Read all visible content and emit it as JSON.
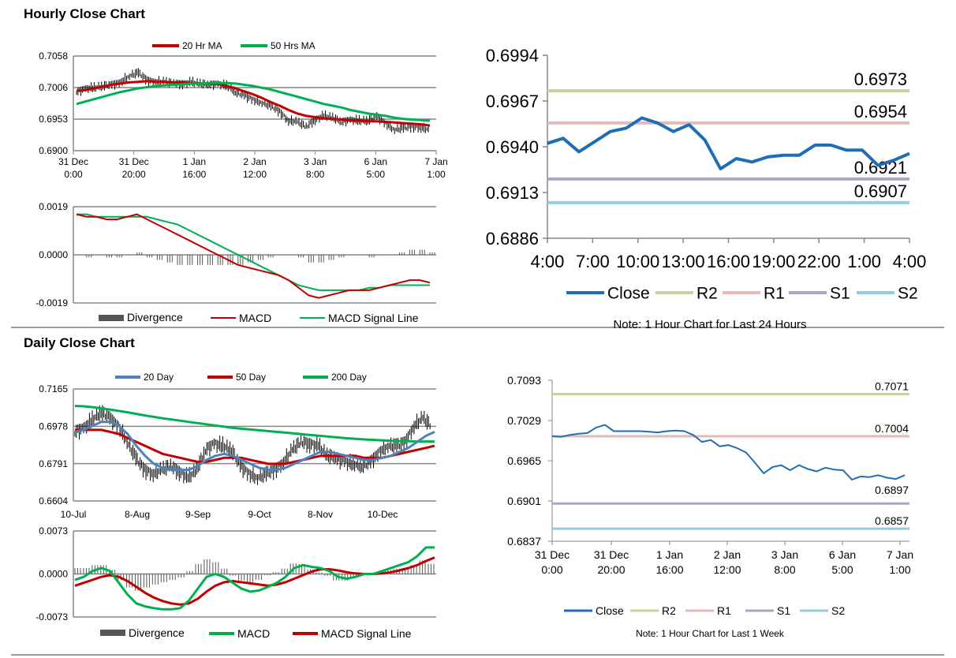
{
  "hourly_title": "Hourly Close Chart",
  "daily_title": "Daily Close Chart",
  "chart_data": [
    {
      "id": "hourly_price",
      "type": "line",
      "legend": [
        "20 Hr MA",
        "50 Hrs MA"
      ],
      "colors": {
        "price": "#000000",
        "ma20": "#c00000",
        "ma50": "#00b050"
      },
      "yticks": [
        "0.7058",
        "0.7006",
        "0.6953",
        "0.6900"
      ],
      "ylim": [
        0.69,
        0.7058
      ],
      "xticks": [
        [
          "31 Dec",
          "0:00"
        ],
        [
          "31 Dec",
          "20:00"
        ],
        [
          "1 Jan",
          "16:00"
        ],
        [
          "2 Jan",
          "12:00"
        ],
        [
          "3 Jan",
          "8:00"
        ],
        [
          "6 Jan",
          "5:00"
        ],
        [
          "7 Jan",
          "1:00"
        ]
      ],
      "price": [
        0.6998,
        0.7004,
        0.7005,
        0.7008,
        0.701,
        0.7015,
        0.7025,
        0.703,
        0.7018,
        0.7015,
        0.7015,
        0.7012,
        0.7012,
        0.7014,
        0.7012,
        0.701,
        0.7012,
        0.7008,
        0.6998,
        0.6992,
        0.6985,
        0.698,
        0.6975,
        0.6965,
        0.695,
        0.6948,
        0.694,
        0.6952,
        0.6958,
        0.6955,
        0.6948,
        0.6952,
        0.695,
        0.695,
        0.6958,
        0.6945,
        0.6935,
        0.6938,
        0.694,
        0.6938,
        0.6935
      ],
      "ma20": [
        0.7,
        0.7001,
        0.7004,
        0.7007,
        0.701,
        0.7012,
        0.7014,
        0.7015,
        0.7016,
        0.7015,
        0.7015,
        0.7014,
        0.7014,
        0.7013,
        0.7012,
        0.7012,
        0.7011,
        0.7008,
        0.7004,
        0.6999,
        0.6994,
        0.6988,
        0.6981,
        0.6975,
        0.6968,
        0.6962,
        0.6958,
        0.6956,
        0.6954,
        0.6953,
        0.6952,
        0.695,
        0.695,
        0.6949,
        0.6949,
        0.6948,
        0.6947,
        0.6946,
        0.6945,
        0.6944,
        0.6942
      ],
      "ma50": [
        0.6978,
        0.6982,
        0.6986,
        0.699,
        0.6994,
        0.6998,
        0.7001,
        0.7004,
        0.7006,
        0.7008,
        0.7009,
        0.701,
        0.7011,
        0.7012,
        0.7012,
        0.7013,
        0.7013,
        0.7013,
        0.7012,
        0.701,
        0.7008,
        0.7005,
        0.7002,
        0.6998,
        0.6994,
        0.699,
        0.6986,
        0.6982,
        0.6978,
        0.6975,
        0.6972,
        0.6968,
        0.6965,
        0.6962,
        0.696,
        0.6958,
        0.6955,
        0.6953,
        0.6952,
        0.6951,
        0.695
      ]
    },
    {
      "id": "hourly_macd",
      "type": "line",
      "legend": [
        "Divergence",
        "MACD",
        "MACD Signal Line"
      ],
      "colors": {
        "divergence": "#555555",
        "macd": "#c00000",
        "signal": "#00b050"
      },
      "yticks": [
        "0.0019",
        "0.0000",
        "-0.0019"
      ],
      "ylim": [
        -0.0019,
        0.0019
      ],
      "macd": [
        0.0016,
        0.0015,
        0.0015,
        0.0014,
        0.0014,
        0.0015,
        0.0016,
        0.0014,
        0.0012,
        0.001,
        0.0008,
        0.0006,
        0.0004,
        0.0002,
        0.0,
        -0.0002,
        -0.0004,
        -0.0005,
        -0.0006,
        -0.0007,
        -0.0008,
        -0.001,
        -0.0013,
        -0.0016,
        -0.0017,
        -0.0016,
        -0.0015,
        -0.0014,
        -0.0014,
        -0.0014,
        -0.0013,
        -0.0012,
        -0.0011,
        -0.001,
        -0.001,
        -0.0011
      ],
      "signal": [
        0.0016,
        0.0016,
        0.0015,
        0.0015,
        0.0015,
        0.0015,
        0.0015,
        0.0015,
        0.0014,
        0.0013,
        0.0012,
        0.001,
        0.0008,
        0.0006,
        0.0004,
        0.0002,
        0.0,
        -0.0002,
        -0.0004,
        -0.0006,
        -0.0008,
        -0.001,
        -0.0012,
        -0.0013,
        -0.0014,
        -0.0014,
        -0.0014,
        -0.0014,
        -0.0014,
        -0.0013,
        -0.0013,
        -0.0012,
        -0.0012,
        -0.0012,
        -0.0012,
        -0.0012
      ],
      "divergence": [
        0.0,
        -0.0001,
        0.0,
        -0.0001,
        -0.0001,
        0.0,
        0.0001,
        -0.0001,
        -0.0002,
        -0.0003,
        -0.0004,
        -0.0004,
        -0.0004,
        -0.0004,
        -0.0004,
        -0.0004,
        -0.0004,
        -0.0003,
        -0.0002,
        -0.0001,
        0.0,
        0.0,
        -0.0001,
        -0.0003,
        -0.0003,
        -0.0002,
        -0.0001,
        0.0,
        0.0,
        -0.0001,
        0.0,
        0.0,
        0.0001,
        0.0002,
        0.0002,
        0.0001
      ]
    },
    {
      "id": "hourly_24h",
      "type": "line",
      "yticks": [
        "0.6994",
        "0.6967",
        "0.6940",
        "0.6913",
        "0.6886"
      ],
      "ylim": [
        0.6886,
        0.6994
      ],
      "xticks": [
        "4:00",
        "7:00",
        "10:00",
        "13:00",
        "16:00",
        "19:00",
        "22:00",
        "1:00",
        "4:00"
      ],
      "close": [
        0.6942,
        0.6945,
        0.6937,
        0.6943,
        0.6949,
        0.6951,
        0.6957,
        0.6954,
        0.6949,
        0.6953,
        0.6944,
        0.6927,
        0.6933,
        0.6931,
        0.6934,
        0.6935,
        0.6935,
        0.6941,
        0.6941,
        0.6938,
        0.6938,
        0.6929,
        0.6932,
        0.6936
      ],
      "levels": [
        {
          "name": "R2",
          "value": 0.6973,
          "label": "0.6973",
          "color": "#c3d69b"
        },
        {
          "name": "R1",
          "value": 0.6954,
          "label": "0.6954",
          "color": "#e6b9b8"
        },
        {
          "name": "S1",
          "value": 0.6921,
          "label": "0.6921",
          "color": "#b3a2c7"
        },
        {
          "name": "S2",
          "value": 0.6907,
          "label": "0.6907",
          "color": "#93cddd"
        }
      ],
      "close_color": "#1f6eb5",
      "legend": [
        "Close",
        "R2",
        "R1",
        "S1",
        "S2"
      ],
      "note": "Note: 1 Hour Chart for Last 24 Hours"
    },
    {
      "id": "daily_price",
      "type": "line",
      "legend": [
        "20 Day",
        "50 Day",
        "200 Day"
      ],
      "colors": {
        "price": "#000000",
        "ma20": "#4f81bd",
        "ma50": "#c00000",
        "ma200": "#00b050"
      },
      "yticks": [
        "0.7165",
        "0.6978",
        "0.6791",
        "0.6604"
      ],
      "ylim": [
        0.6604,
        0.7165
      ],
      "xticks": [
        "10-Jul",
        "8-Aug",
        "9-Sep",
        "9-Oct",
        "8-Nov",
        "10-Dec"
      ],
      "price": [
        0.695,
        0.697,
        0.701,
        0.705,
        0.702,
        0.698,
        0.69,
        0.682,
        0.676,
        0.674,
        0.676,
        0.678,
        0.675,
        0.672,
        0.676,
        0.686,
        0.689,
        0.688,
        0.686,
        0.678,
        0.674,
        0.672,
        0.674,
        0.676,
        0.68,
        0.686,
        0.69,
        0.689,
        0.688,
        0.683,
        0.682,
        0.68,
        0.679,
        0.678,
        0.68,
        0.685,
        0.688,
        0.688,
        0.69,
        0.698,
        0.702,
        0.698
      ],
      "ma20": [
        0.695,
        0.696,
        0.698,
        0.7,
        0.7,
        0.698,
        0.694,
        0.688,
        0.683,
        0.679,
        0.677,
        0.676,
        0.676,
        0.676,
        0.678,
        0.681,
        0.683,
        0.684,
        0.683,
        0.681,
        0.679,
        0.677,
        0.676,
        0.676,
        0.677,
        0.679,
        0.681,
        0.683,
        0.685,
        0.685,
        0.684,
        0.683,
        0.682,
        0.681,
        0.681,
        0.682,
        0.683,
        0.685,
        0.687,
        0.69,
        0.693,
        0.695
      ],
      "ma50": [
        0.696,
        0.696,
        0.696,
        0.696,
        0.695,
        0.694,
        0.692,
        0.69,
        0.688,
        0.686,
        0.684,
        0.683,
        0.682,
        0.681,
        0.68,
        0.68,
        0.681,
        0.682,
        0.682,
        0.682,
        0.681,
        0.68,
        0.679,
        0.679,
        0.679,
        0.68,
        0.681,
        0.682,
        0.683,
        0.683,
        0.683,
        0.683,
        0.683,
        0.682,
        0.682,
        0.682,
        0.683,
        0.684,
        0.685,
        0.686,
        0.687,
        0.688
      ],
      "ma200": [
        0.708,
        0.7078,
        0.7074,
        0.7068,
        0.7062,
        0.7055,
        0.7048,
        0.704,
        0.7032,
        0.7025,
        0.7018,
        0.7012,
        0.7006,
        0.7,
        0.6994,
        0.6988,
        0.6982,
        0.6976,
        0.697,
        0.6966,
        0.6962,
        0.6958,
        0.6954,
        0.695,
        0.6946,
        0.6942,
        0.6938,
        0.6934,
        0.693,
        0.6926,
        0.6922,
        0.6918,
        0.6915,
        0.6912,
        0.691,
        0.6908,
        0.6906,
        0.6904,
        0.6903,
        0.6902,
        0.6902,
        0.6902
      ]
    },
    {
      "id": "daily_macd",
      "type": "line",
      "legend": [
        "Divergence",
        "MACD",
        "MACD Signal Line"
      ],
      "colors": {
        "divergence": "#555555",
        "macd": "#00b050",
        "signal": "#c00000"
      },
      "yticks": [
        "0.0073",
        "0.0000",
        "-0.0073"
      ],
      "ylim": [
        -0.0073,
        0.0073
      ],
      "macd": [
        -0.001,
        -0.0005,
        0.0005,
        0.001,
        0.0005,
        -0.0015,
        -0.0035,
        -0.005,
        -0.0055,
        -0.0058,
        -0.006,
        -0.006,
        -0.0058,
        -0.0045,
        -0.0025,
        -0.0005,
        0.0,
        -0.0005,
        -0.0015,
        -0.0025,
        -0.003,
        -0.0028,
        -0.0022,
        -0.0015,
        -0.0005,
        0.001,
        0.0015,
        0.0012,
        0.001,
        0.0005,
        -0.0005,
        -0.0008,
        -0.0005,
        0.0,
        0.0,
        0.0005,
        0.001,
        0.0015,
        0.002,
        0.003,
        0.0045,
        0.0045
      ],
      "signal": [
        -0.002,
        -0.0015,
        -0.001,
        -0.0005,
        -0.0002,
        -0.0005,
        -0.0012,
        -0.0022,
        -0.0032,
        -0.004,
        -0.0046,
        -0.005,
        -0.0052,
        -0.005,
        -0.0042,
        -0.003,
        -0.002,
        -0.0014,
        -0.0012,
        -0.0014,
        -0.0016,
        -0.0018,
        -0.002,
        -0.0018,
        -0.0014,
        -0.0008,
        -0.0002,
        0.0004,
        0.0008,
        0.0008,
        0.0006,
        0.0003,
        0.0001,
        0.0,
        0.0,
        0.0001,
        0.0003,
        0.0006,
        0.001,
        0.0015,
        0.0022,
        0.0028
      ],
      "divergence": [
        0.001,
        0.001,
        0.0015,
        0.0015,
        0.0007,
        -0.001,
        -0.0023,
        -0.0028,
        -0.0023,
        -0.0018,
        -0.0014,
        -0.001,
        -0.0006,
        0.0005,
        0.0017,
        0.0025,
        0.002,
        0.0009,
        -0.0003,
        -0.0011,
        -0.0014,
        -0.001,
        -0.0002,
        0.0003,
        0.0009,
        0.0018,
        0.0017,
        0.0008,
        0.0002,
        -0.0003,
        -0.0011,
        -0.0011,
        -0.0006,
        0.0,
        0.0,
        0.0004,
        0.0007,
        0.0009,
        0.001,
        0.0015,
        0.0023,
        0.0017
      ]
    },
    {
      "id": "weekly_close",
      "type": "line",
      "yticks": [
        "0.7093",
        "0.7029",
        "0.6965",
        "0.6901",
        "0.6837"
      ],
      "ylim": [
        0.6837,
        0.7093
      ],
      "xticks": [
        [
          "31 Dec",
          "0:00"
        ],
        [
          "31 Dec",
          "20:00"
        ],
        [
          "1 Jan",
          "16:00"
        ],
        [
          "2 Jan",
          "12:00"
        ],
        [
          "3 Jan",
          "8:00"
        ],
        [
          "6 Jan",
          "5:00"
        ],
        [
          "7 Jan",
          "1:00"
        ]
      ],
      "close": [
        0.7004,
        0.7003,
        0.7006,
        0.7008,
        0.7009,
        0.7018,
        0.7022,
        0.7012,
        0.7012,
        0.7012,
        0.7012,
        0.7011,
        0.701,
        0.7012,
        0.7013,
        0.7012,
        0.7006,
        0.6995,
        0.6998,
        0.6988,
        0.699,
        0.6985,
        0.6978,
        0.6962,
        0.6945,
        0.6955,
        0.6958,
        0.695,
        0.6958,
        0.6952,
        0.6948,
        0.6954,
        0.6951,
        0.695,
        0.6935,
        0.694,
        0.6939,
        0.6942,
        0.6938,
        0.6936,
        0.6942
      ],
      "levels": [
        {
          "name": "R2",
          "value": 0.7071,
          "label": "0.7071",
          "color": "#c3d69b"
        },
        {
          "name": "R1",
          "value": 0.7004,
          "label": "0.7004",
          "color": "#e6b9b8"
        },
        {
          "name": "S1",
          "value": 0.6897,
          "label": "0.6897",
          "color": "#b3a2c7"
        },
        {
          "name": "S2",
          "value": 0.6857,
          "label": "0.6857",
          "color": "#93cddd"
        }
      ],
      "close_color": "#1f6eb5",
      "legend": [
        "Close",
        "R2",
        "R1",
        "S1",
        "S2"
      ],
      "note": "Note: 1 Hour Chart for Last 1 Week"
    }
  ]
}
